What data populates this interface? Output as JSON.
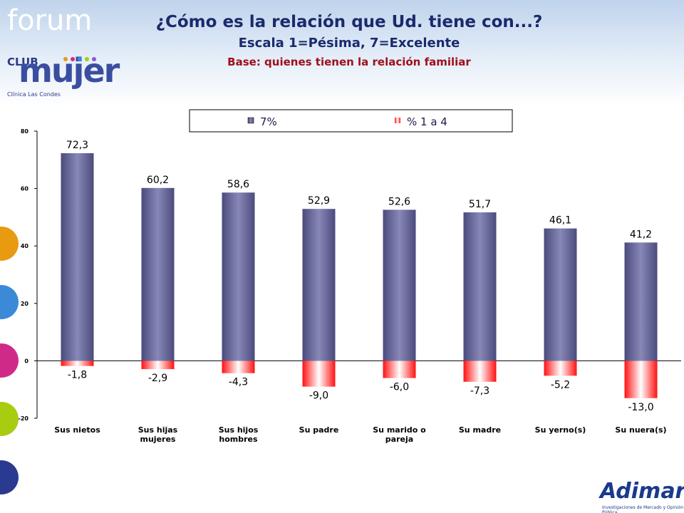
{
  "slide": {
    "brand_top": "forum",
    "club": "CLUB",
    "mujer": "mujer",
    "clinic": "Clínica Las Condes",
    "brand_bottom": "Adimark",
    "brand_bottom_sub": "Investigaciones de Mercado y Opinión Pública"
  },
  "chart_data": {
    "type": "bar",
    "title": "¿Cómo es la relación que Ud. tiene con...?",
    "subtitle": "Escala 1=Pésima, 7=Excelente",
    "note": "Base: quienes tienen la relación familiar",
    "categories": [
      "Sus nietos",
      "Sus hijas mujeres",
      "Sus hijos hombres",
      "Su padre",
      "Su marido o pareja",
      "Su madre",
      "Su yerno(s)",
      "Su nuera(s)"
    ],
    "series": [
      {
        "name": "7%",
        "color": "#4a4a7c",
        "values": [
          72.3,
          60.2,
          58.6,
          52.9,
          52.6,
          51.7,
          46.1,
          41.2
        ],
        "value_labels": [
          "72,3",
          "60,2",
          "58,6",
          "52,9",
          "52,6",
          "51,7",
          "46,1",
          "41,2"
        ]
      },
      {
        "name": "% 1 a 4",
        "color": "#ff1010",
        "values": [
          -1.8,
          -2.9,
          -4.3,
          -9.0,
          -6.0,
          -7.3,
          -5.2,
          -13.0
        ],
        "value_labels": [
          "-1,8",
          "-2,9",
          "-4,3",
          "-9,0",
          "-6,0",
          "-7,3",
          "-5,2",
          "-13,0"
        ]
      }
    ],
    "ylim": [
      -20,
      80
    ],
    "yticks": [
      80,
      60,
      40,
      20,
      0,
      -20
    ],
    "grid": false
  }
}
